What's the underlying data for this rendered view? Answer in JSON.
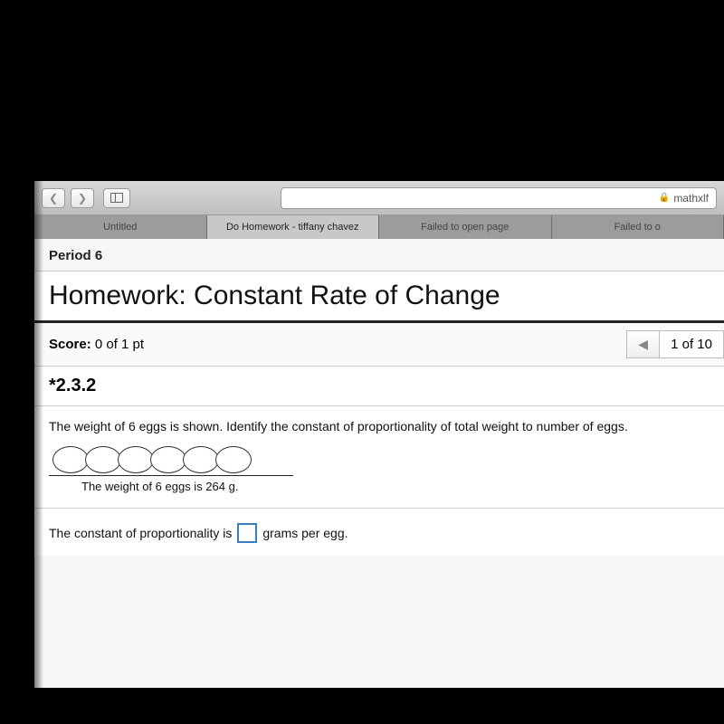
{
  "browser": {
    "url_host": "mathxlf",
    "tabs": [
      {
        "label": "Untitled",
        "active": false
      },
      {
        "label": "Do Homework - tiffany chavez",
        "active": true
      },
      {
        "label": "Failed to open page",
        "active": false
      },
      {
        "label": "Failed to o",
        "active": false
      }
    ]
  },
  "header": {
    "period": "Period 6",
    "title": "Homework: Constant Rate of Change"
  },
  "score": {
    "label": "Score:",
    "value": "0 of 1 pt",
    "pager": "1 of 10"
  },
  "question": {
    "number": "*2.3.2",
    "prompt": "The weight of 6 eggs is shown. Identify the constant of proportionality of total weight to number of eggs.",
    "egg_count": 6,
    "caption": "The weight of 6 eggs is 264 g.",
    "answer_prefix": "The constant of proportionality is",
    "answer_suffix": "grams per egg."
  },
  "style": {
    "accent_border": "#3a7fbf",
    "egg_size": {
      "w": 40,
      "h": 30
    }
  }
}
